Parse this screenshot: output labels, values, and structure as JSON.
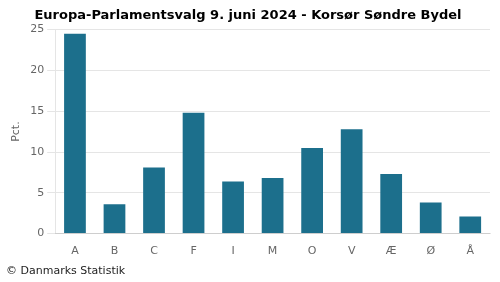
{
  "chart_data": {
    "type": "bar",
    "title": "Europa-Parlamentsvalg 9. juni 2024 - Korsør Søndre Bydel",
    "ylabel": "Pct.",
    "footer": "© Danmarks Statistik",
    "categories": [
      "A",
      "B",
      "C",
      "F",
      "I",
      "M",
      "O",
      "V",
      "Æ",
      "Ø",
      "Å"
    ],
    "values": [
      24.5,
      3.6,
      8.1,
      14.8,
      6.4,
      6.8,
      10.5,
      12.8,
      7.3,
      3.8,
      2.1
    ],
    "color": "#1c6f8c",
    "ylim": [
      0,
      25
    ],
    "yticks": [
      0,
      5,
      10,
      15,
      20,
      25
    ],
    "grid": true
  }
}
